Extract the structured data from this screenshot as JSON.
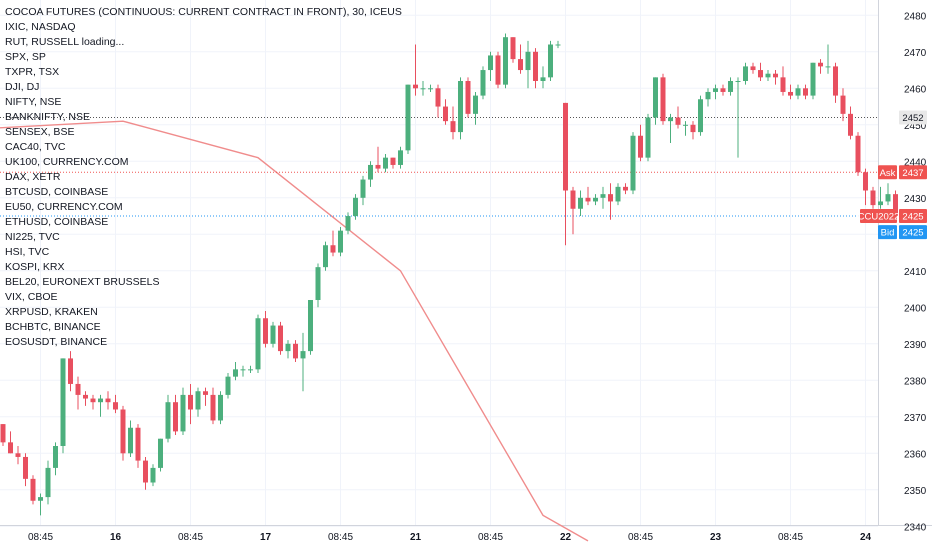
{
  "legend": {
    "title": "COCOA FUTURES (CONTINUOUS: CURRENT CONTRACT IN FRONT), 30, ICEUS",
    "symbols": [
      "IXIC, NASDAQ",
      "RUT, RUSSELL loading...",
      "SPX, SP",
      "TXPR, TSX",
      "DJI, DJ",
      "NIFTY, NSE",
      "BANKNIFTY, NSE",
      "SENSEX, BSE",
      "CAC40, TVC",
      "UK100, CURRENCY.COM",
      "DAX, XETR",
      "BTCUSD, COINBASE",
      "EU50, CURRENCY.COM",
      "ETHUSD, COINBASE",
      "NI225, TVC",
      "HSI, TVC",
      "KOSPI, KRX",
      "BEL20, EURONEXT BRUSSELS",
      "VIX, CBOE",
      "XRPUSD, KRAKEN",
      "BCHBTC, BINANCE",
      "EOSUSDT, BINANCE"
    ]
  },
  "colors": {
    "up": "#26a69a",
    "up_body": "#4caf7d",
    "down": "#ef5350",
    "down_body": "#e84f5f",
    "overlay_line": "#f08c8c",
    "grid": "#f0f3fa",
    "ask": "#ef5350",
    "bid": "#2196f3",
    "price_tag": "#ef5350",
    "axis_text": "#131722"
  },
  "price_labels": {
    "ask_label": "Ask",
    "ask_value": "2437",
    "bid_label": "Bid",
    "bid_value": "2425",
    "symbol_label": "CCU2022",
    "symbol_value": "2425",
    "high_value": "2452"
  },
  "chart_data": {
    "type": "candlestick",
    "title": "COCOA FUTURES (CONTINUOUS: CURRENT CONTRACT IN FRONT), 30, ICEUS",
    "interval": "30",
    "ylim": [
      2336,
      2484
    ],
    "y_ticks": [
      2340,
      2350,
      2360,
      2370,
      2380,
      2390,
      2400,
      2410,
      2420,
      2430,
      2440,
      2450,
      2460,
      2470,
      2480
    ],
    "x_ticks": [
      "08:45",
      "16",
      "08:45",
      "17",
      "08:45",
      "21",
      "08:45",
      "22",
      "08:45",
      "23",
      "08:45",
      "24"
    ],
    "x_tick_index": [
      5,
      15,
      25,
      35,
      45,
      55,
      65,
      75,
      85,
      95,
      105,
      115
    ],
    "x_tick_bold": [
      false,
      true,
      false,
      true,
      false,
      true,
      false,
      true,
      false,
      true,
      false,
      true
    ],
    "reference_lines": {
      "high": 2452,
      "ask": 2437,
      "bid": 2425
    },
    "candles": [
      {
        "o": 2368,
        "h": 2368,
        "l": 2362,
        "c": 2363
      },
      {
        "o": 2363,
        "h": 2366,
        "l": 2360,
        "c": 2360
      },
      {
        "o": 2360,
        "h": 2362,
        "l": 2357,
        "c": 2359
      },
      {
        "o": 2359,
        "h": 2360,
        "l": 2351,
        "c": 2353
      },
      {
        "o": 2353,
        "h": 2354,
        "l": 2346,
        "c": 2347
      },
      {
        "o": 2347,
        "h": 2349,
        "l": 2343,
        "c": 2348
      },
      {
        "o": 2348,
        "h": 2358,
        "l": 2346,
        "c": 2356
      },
      {
        "o": 2356,
        "h": 2363,
        "l": 2354,
        "c": 2362
      },
      {
        "o": 2362,
        "h": 2386,
        "l": 2360,
        "c": 2386
      },
      {
        "o": 2386,
        "h": 2388,
        "l": 2377,
        "c": 2379
      },
      {
        "o": 2379,
        "h": 2381,
        "l": 2372,
        "c": 2376
      },
      {
        "o": 2376,
        "h": 2377,
        "l": 2373,
        "c": 2375
      },
      {
        "o": 2375,
        "h": 2376,
        "l": 2372,
        "c": 2374
      },
      {
        "o": 2374,
        "h": 2376,
        "l": 2370,
        "c": 2375
      },
      {
        "o": 2375,
        "h": 2377,
        "l": 2372,
        "c": 2374
      },
      {
        "o": 2374,
        "h": 2376,
        "l": 2371,
        "c": 2372
      },
      {
        "o": 2372,
        "h": 2373,
        "l": 2358,
        "c": 2360
      },
      {
        "o": 2360,
        "h": 2369,
        "l": 2359,
        "c": 2367
      },
      {
        "o": 2367,
        "h": 2368,
        "l": 2356,
        "c": 2358
      },
      {
        "o": 2358,
        "h": 2359,
        "l": 2350,
        "c": 2352
      },
      {
        "o": 2352,
        "h": 2357,
        "l": 2351,
        "c": 2356
      },
      {
        "o": 2356,
        "h": 2364,
        "l": 2355,
        "c": 2364
      },
      {
        "o": 2364,
        "h": 2376,
        "l": 2363,
        "c": 2374
      },
      {
        "o": 2374,
        "h": 2376,
        "l": 2365,
        "c": 2366
      },
      {
        "o": 2366,
        "h": 2378,
        "l": 2365,
        "c": 2376
      },
      {
        "o": 2376,
        "h": 2379,
        "l": 2368,
        "c": 2372
      },
      {
        "o": 2372,
        "h": 2378,
        "l": 2370,
        "c": 2377
      },
      {
        "o": 2377,
        "h": 2378,
        "l": 2373,
        "c": 2376
      },
      {
        "o": 2376,
        "h": 2378,
        "l": 2368,
        "c": 2369
      },
      {
        "o": 2369,
        "h": 2377,
        "l": 2368,
        "c": 2376
      },
      {
        "o": 2376,
        "h": 2382,
        "l": 2375,
        "c": 2381
      },
      {
        "o": 2381,
        "h": 2385,
        "l": 2380,
        "c": 2383
      },
      {
        "o": 2383,
        "h": 2384,
        "l": 2381,
        "c": 2383
      },
      {
        "o": 2383,
        "h": 2384,
        "l": 2382,
        "c": 2383
      },
      {
        "o": 2383,
        "h": 2398,
        "l": 2382,
        "c": 2397
      },
      {
        "o": 2397,
        "h": 2399,
        "l": 2389,
        "c": 2390
      },
      {
        "o": 2390,
        "h": 2396,
        "l": 2389,
        "c": 2395
      },
      {
        "o": 2395,
        "h": 2396,
        "l": 2387,
        "c": 2388
      },
      {
        "o": 2388,
        "h": 2391,
        "l": 2386,
        "c": 2390
      },
      {
        "o": 2390,
        "h": 2391,
        "l": 2385,
        "c": 2386
      },
      {
        "o": 2386,
        "h": 2393,
        "l": 2377,
        "c": 2388
      },
      {
        "o": 2388,
        "h": 2402,
        "l": 2387,
        "c": 2402
      },
      {
        "o": 2402,
        "h": 2412,
        "l": 2400,
        "c": 2411
      },
      {
        "o": 2411,
        "h": 2418,
        "l": 2410,
        "c": 2417
      },
      {
        "o": 2417,
        "h": 2421,
        "l": 2414,
        "c": 2415
      },
      {
        "o": 2415,
        "h": 2422,
        "l": 2414,
        "c": 2421
      },
      {
        "o": 2421,
        "h": 2426,
        "l": 2420,
        "c": 2425
      },
      {
        "o": 2425,
        "h": 2431,
        "l": 2424,
        "c": 2430
      },
      {
        "o": 2430,
        "h": 2436,
        "l": 2428,
        "c": 2435
      },
      {
        "o": 2435,
        "h": 2440,
        "l": 2433,
        "c": 2439
      },
      {
        "o": 2439,
        "h": 2444,
        "l": 2437,
        "c": 2438
      },
      {
        "o": 2438,
        "h": 2442,
        "l": 2437,
        "c": 2441
      },
      {
        "o": 2441,
        "h": 2441,
        "l": 2438,
        "c": 2439
      },
      {
        "o": 2439,
        "h": 2444,
        "l": 2438,
        "c": 2443
      },
      {
        "o": 2443,
        "h": 2461,
        "l": 2442,
        "c": 2461
      },
      {
        "o": 2461,
        "h": 2472,
        "l": 2458,
        "c": 2460
      },
      {
        "o": 2460,
        "h": 2462,
        "l": 2458,
        "c": 2460
      },
      {
        "o": 2460,
        "h": 2461,
        "l": 2459,
        "c": 2460
      },
      {
        "o": 2460,
        "h": 2461,
        "l": 2452,
        "c": 2455
      },
      {
        "o": 2455,
        "h": 2457,
        "l": 2450,
        "c": 2451
      },
      {
        "o": 2451,
        "h": 2455,
        "l": 2446,
        "c": 2448
      },
      {
        "o": 2448,
        "h": 2463,
        "l": 2446,
        "c": 2462
      },
      {
        "o": 2462,
        "h": 2463,
        "l": 2452,
        "c": 2453
      },
      {
        "o": 2453,
        "h": 2459,
        "l": 2450,
        "c": 2458
      },
      {
        "o": 2458,
        "h": 2466,
        "l": 2457,
        "c": 2465
      },
      {
        "o": 2465,
        "h": 2470,
        "l": 2462,
        "c": 2469
      },
      {
        "o": 2469,
        "h": 2470,
        "l": 2460,
        "c": 2461
      },
      {
        "o": 2461,
        "h": 2475,
        "l": 2460,
        "c": 2474
      },
      {
        "o": 2474,
        "h": 2474,
        "l": 2467,
        "c": 2468
      },
      {
        "o": 2468,
        "h": 2472,
        "l": 2464,
        "c": 2465
      },
      {
        "o": 2465,
        "h": 2473,
        "l": 2460,
        "c": 2470
      },
      {
        "o": 2470,
        "h": 2471,
        "l": 2460,
        "c": 2462
      },
      {
        "o": 2462,
        "h": 2466,
        "l": 2460,
        "c": 2463
      },
      {
        "o": 2463,
        "h": 2473,
        "l": 2462,
        "c": 2472
      },
      {
        "o": 2472,
        "h": 2473,
        "l": 2471,
        "c": 2472
      },
      {
        "o": 2456,
        "h": 2456,
        "l": 2417,
        "c": 2432
      },
      {
        "o": 2432,
        "h": 2433,
        "l": 2420,
        "c": 2427
      },
      {
        "o": 2427,
        "h": 2432,
        "l": 2425,
        "c": 2430
      },
      {
        "o": 2430,
        "h": 2433,
        "l": 2428,
        "c": 2429
      },
      {
        "o": 2429,
        "h": 2431,
        "l": 2428,
        "c": 2430
      },
      {
        "o": 2430,
        "h": 2433,
        "l": 2427,
        "c": 2431
      },
      {
        "o": 2431,
        "h": 2434,
        "l": 2424,
        "c": 2429
      },
      {
        "o": 2429,
        "h": 2434,
        "l": 2428,
        "c": 2433
      },
      {
        "o": 2433,
        "h": 2434,
        "l": 2431,
        "c": 2432
      },
      {
        "o": 2432,
        "h": 2448,
        "l": 2431,
        "c": 2447
      },
      {
        "o": 2447,
        "h": 2450,
        "l": 2440,
        "c": 2441
      },
      {
        "o": 2441,
        "h": 2453,
        "l": 2440,
        "c": 2452
      },
      {
        "o": 2452,
        "h": 2463,
        "l": 2450,
        "c": 2463
      },
      {
        "o": 2463,
        "h": 2464,
        "l": 2450,
        "c": 2451
      },
      {
        "o": 2451,
        "h": 2453,
        "l": 2445,
        "c": 2452
      },
      {
        "o": 2452,
        "h": 2455,
        "l": 2449,
        "c": 2450
      },
      {
        "o": 2450,
        "h": 2451,
        "l": 2447,
        "c": 2450
      },
      {
        "o": 2450,
        "h": 2451,
        "l": 2446,
        "c": 2448
      },
      {
        "o": 2448,
        "h": 2458,
        "l": 2447,
        "c": 2457
      },
      {
        "o": 2457,
        "h": 2460,
        "l": 2455,
        "c": 2459
      },
      {
        "o": 2459,
        "h": 2461,
        "l": 2457,
        "c": 2460
      },
      {
        "o": 2460,
        "h": 2461,
        "l": 2458,
        "c": 2459
      },
      {
        "o": 2459,
        "h": 2463,
        "l": 2458,
        "c": 2462
      },
      {
        "o": 2462,
        "h": 2463,
        "l": 2441,
        "c": 2462
      },
      {
        "o": 2462,
        "h": 2467,
        "l": 2461,
        "c": 2466
      },
      {
        "o": 2466,
        "h": 2467,
        "l": 2464,
        "c": 2465
      },
      {
        "o": 2465,
        "h": 2467,
        "l": 2462,
        "c": 2463
      },
      {
        "o": 2463,
        "h": 2465,
        "l": 2462,
        "c": 2464
      },
      {
        "o": 2464,
        "h": 2465,
        "l": 2461,
        "c": 2463
      },
      {
        "o": 2463,
        "h": 2466,
        "l": 2458,
        "c": 2459
      },
      {
        "o": 2459,
        "h": 2461,
        "l": 2457,
        "c": 2458
      },
      {
        "o": 2458,
        "h": 2461,
        "l": 2457,
        "c": 2460
      },
      {
        "o": 2460,
        "h": 2461,
        "l": 2457,
        "c": 2458
      },
      {
        "o": 2458,
        "h": 2467,
        "l": 2457,
        "c": 2467
      },
      {
        "o": 2467,
        "h": 2468,
        "l": 2464,
        "c": 2466
      },
      {
        "o": 2466,
        "h": 2472,
        "l": 2464,
        "c": 2466
      },
      {
        "o": 2466,
        "h": 2467,
        "l": 2456,
        "c": 2458
      },
      {
        "o": 2458,
        "h": 2460,
        "l": 2451,
        "c": 2453
      },
      {
        "o": 2453,
        "h": 2455,
        "l": 2446,
        "c": 2447
      },
      {
        "o": 2447,
        "h": 2448,
        "l": 2436,
        "c": 2437
      },
      {
        "o": 2437,
        "h": 2438,
        "l": 2428,
        "c": 2432
      },
      {
        "o": 2432,
        "h": 2433,
        "l": 2427,
        "c": 2428
      },
      {
        "o": 2428,
        "h": 2433,
        "l": 2427,
        "c": 2429
      },
      {
        "o": 2429,
        "h": 2434,
        "l": 2428,
        "c": 2431
      },
      {
        "o": 2431,
        "h": 2432,
        "l": 2424,
        "c": 2425
      }
    ],
    "overlay_line": {
      "color": "#f08c8c",
      "points": [
        [
          -2,
          2449
        ],
        [
          16,
          2451
        ],
        [
          34,
          2441
        ],
        [
          53,
          2410
        ],
        [
          72,
          2343
        ],
        [
          78,
          2336
        ]
      ]
    }
  }
}
